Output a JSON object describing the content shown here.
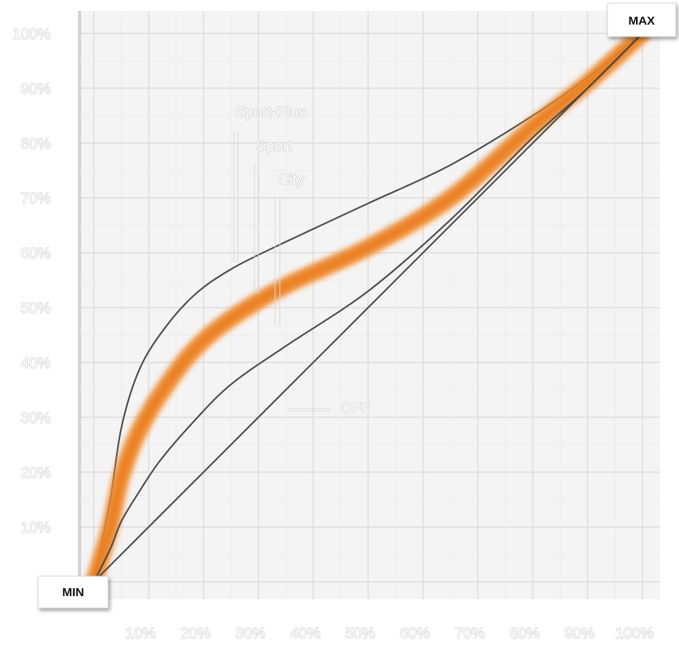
{
  "chart_data": {
    "type": "line",
    "title": "",
    "xlabel": "",
    "ylabel": "",
    "xlim": [
      0,
      100
    ],
    "ylim": [
      0,
      100
    ],
    "grid": true,
    "x_ticks": [
      "10%",
      "20%",
      "30%",
      "40%",
      "50%",
      "60%",
      "70%",
      "80%",
      "90%",
      "100%"
    ],
    "y_ticks": [
      "10%",
      "20%",
      "30%",
      "40%",
      "50%",
      "60%",
      "70%",
      "80%",
      "90%",
      "100%"
    ],
    "min_label": "MIN",
    "max_label": "MAX",
    "highlight_color": "#f0892b",
    "line_color": "#4a4a4a",
    "series": [
      {
        "name": "Sport-Plus",
        "x": [
          0,
          3,
          5,
          8,
          12,
          18,
          25,
          35,
          50,
          65,
          80,
          90,
          100
        ],
        "y": [
          0,
          15,
          28,
          38,
          45,
          52,
          57,
          62,
          69,
          76,
          85,
          92,
          100
        ]
      },
      {
        "name": "Sport",
        "x": [
          0,
          3,
          5,
          8,
          12,
          18,
          25,
          35,
          50,
          65,
          80,
          90,
          100
        ],
        "y": [
          0,
          10,
          19,
          27,
          34,
          42,
          48,
          54,
          61,
          70,
          83,
          91,
          100
        ]
      },
      {
        "name": "City",
        "x": [
          0,
          3,
          5,
          8,
          12,
          18,
          25,
          35,
          50,
          65,
          80,
          90,
          100
        ],
        "y": [
          0,
          6,
          11,
          16,
          22,
          29,
          36,
          43,
          53,
          66,
          81,
          90,
          100
        ]
      },
      {
        "name": "OFF",
        "x": [
          0,
          100
        ],
        "y": [
          0,
          100
        ]
      }
    ]
  }
}
